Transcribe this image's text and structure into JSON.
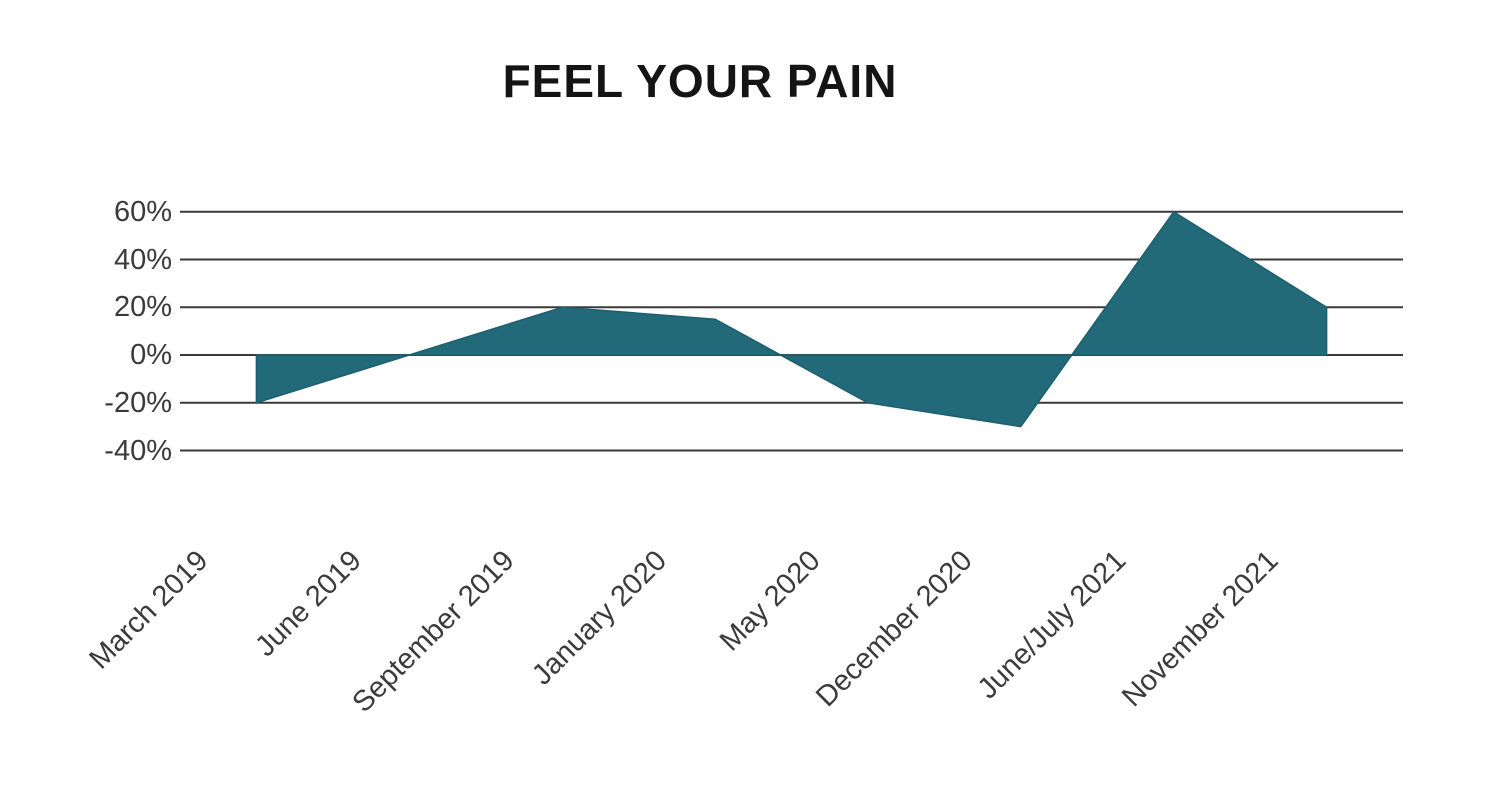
{
  "title": "FEEL YOUR PAIN",
  "chart_data": {
    "type": "area",
    "title": "FEEL YOUR PAIN",
    "unit": "%",
    "categories": [
      "March 2019",
      "June 2019",
      "September 2019",
      "January 2020",
      "May 2020",
      "December 2020",
      "June/July 2021",
      "November 2021"
    ],
    "values": [
      -20,
      0,
      20,
      15,
      -20,
      -30,
      60,
      20
    ],
    "baseline": 0,
    "xlabel": "",
    "ylabel": "",
    "ylim": [
      -40,
      60
    ],
    "grid": true,
    "legend": "none",
    "x_label_rotation_deg": -45,
    "y_ticks": [
      {
        "value": 60,
        "label": "60%"
      },
      {
        "value": 40,
        "label": "40%"
      },
      {
        "value": 20,
        "label": "20%"
      },
      {
        "value": 0,
        "label": "0%"
      },
      {
        "value": -20,
        "label": "-20%"
      },
      {
        "value": -40,
        "label": "-40%"
      }
    ],
    "colors": {
      "area_fill": "#226a79",
      "area_stroke": "#1d5f6d",
      "gridline": "#3a3a3a",
      "tick_label": "#3b3b3b",
      "title": "#141414",
      "background": "#ffffff"
    }
  }
}
